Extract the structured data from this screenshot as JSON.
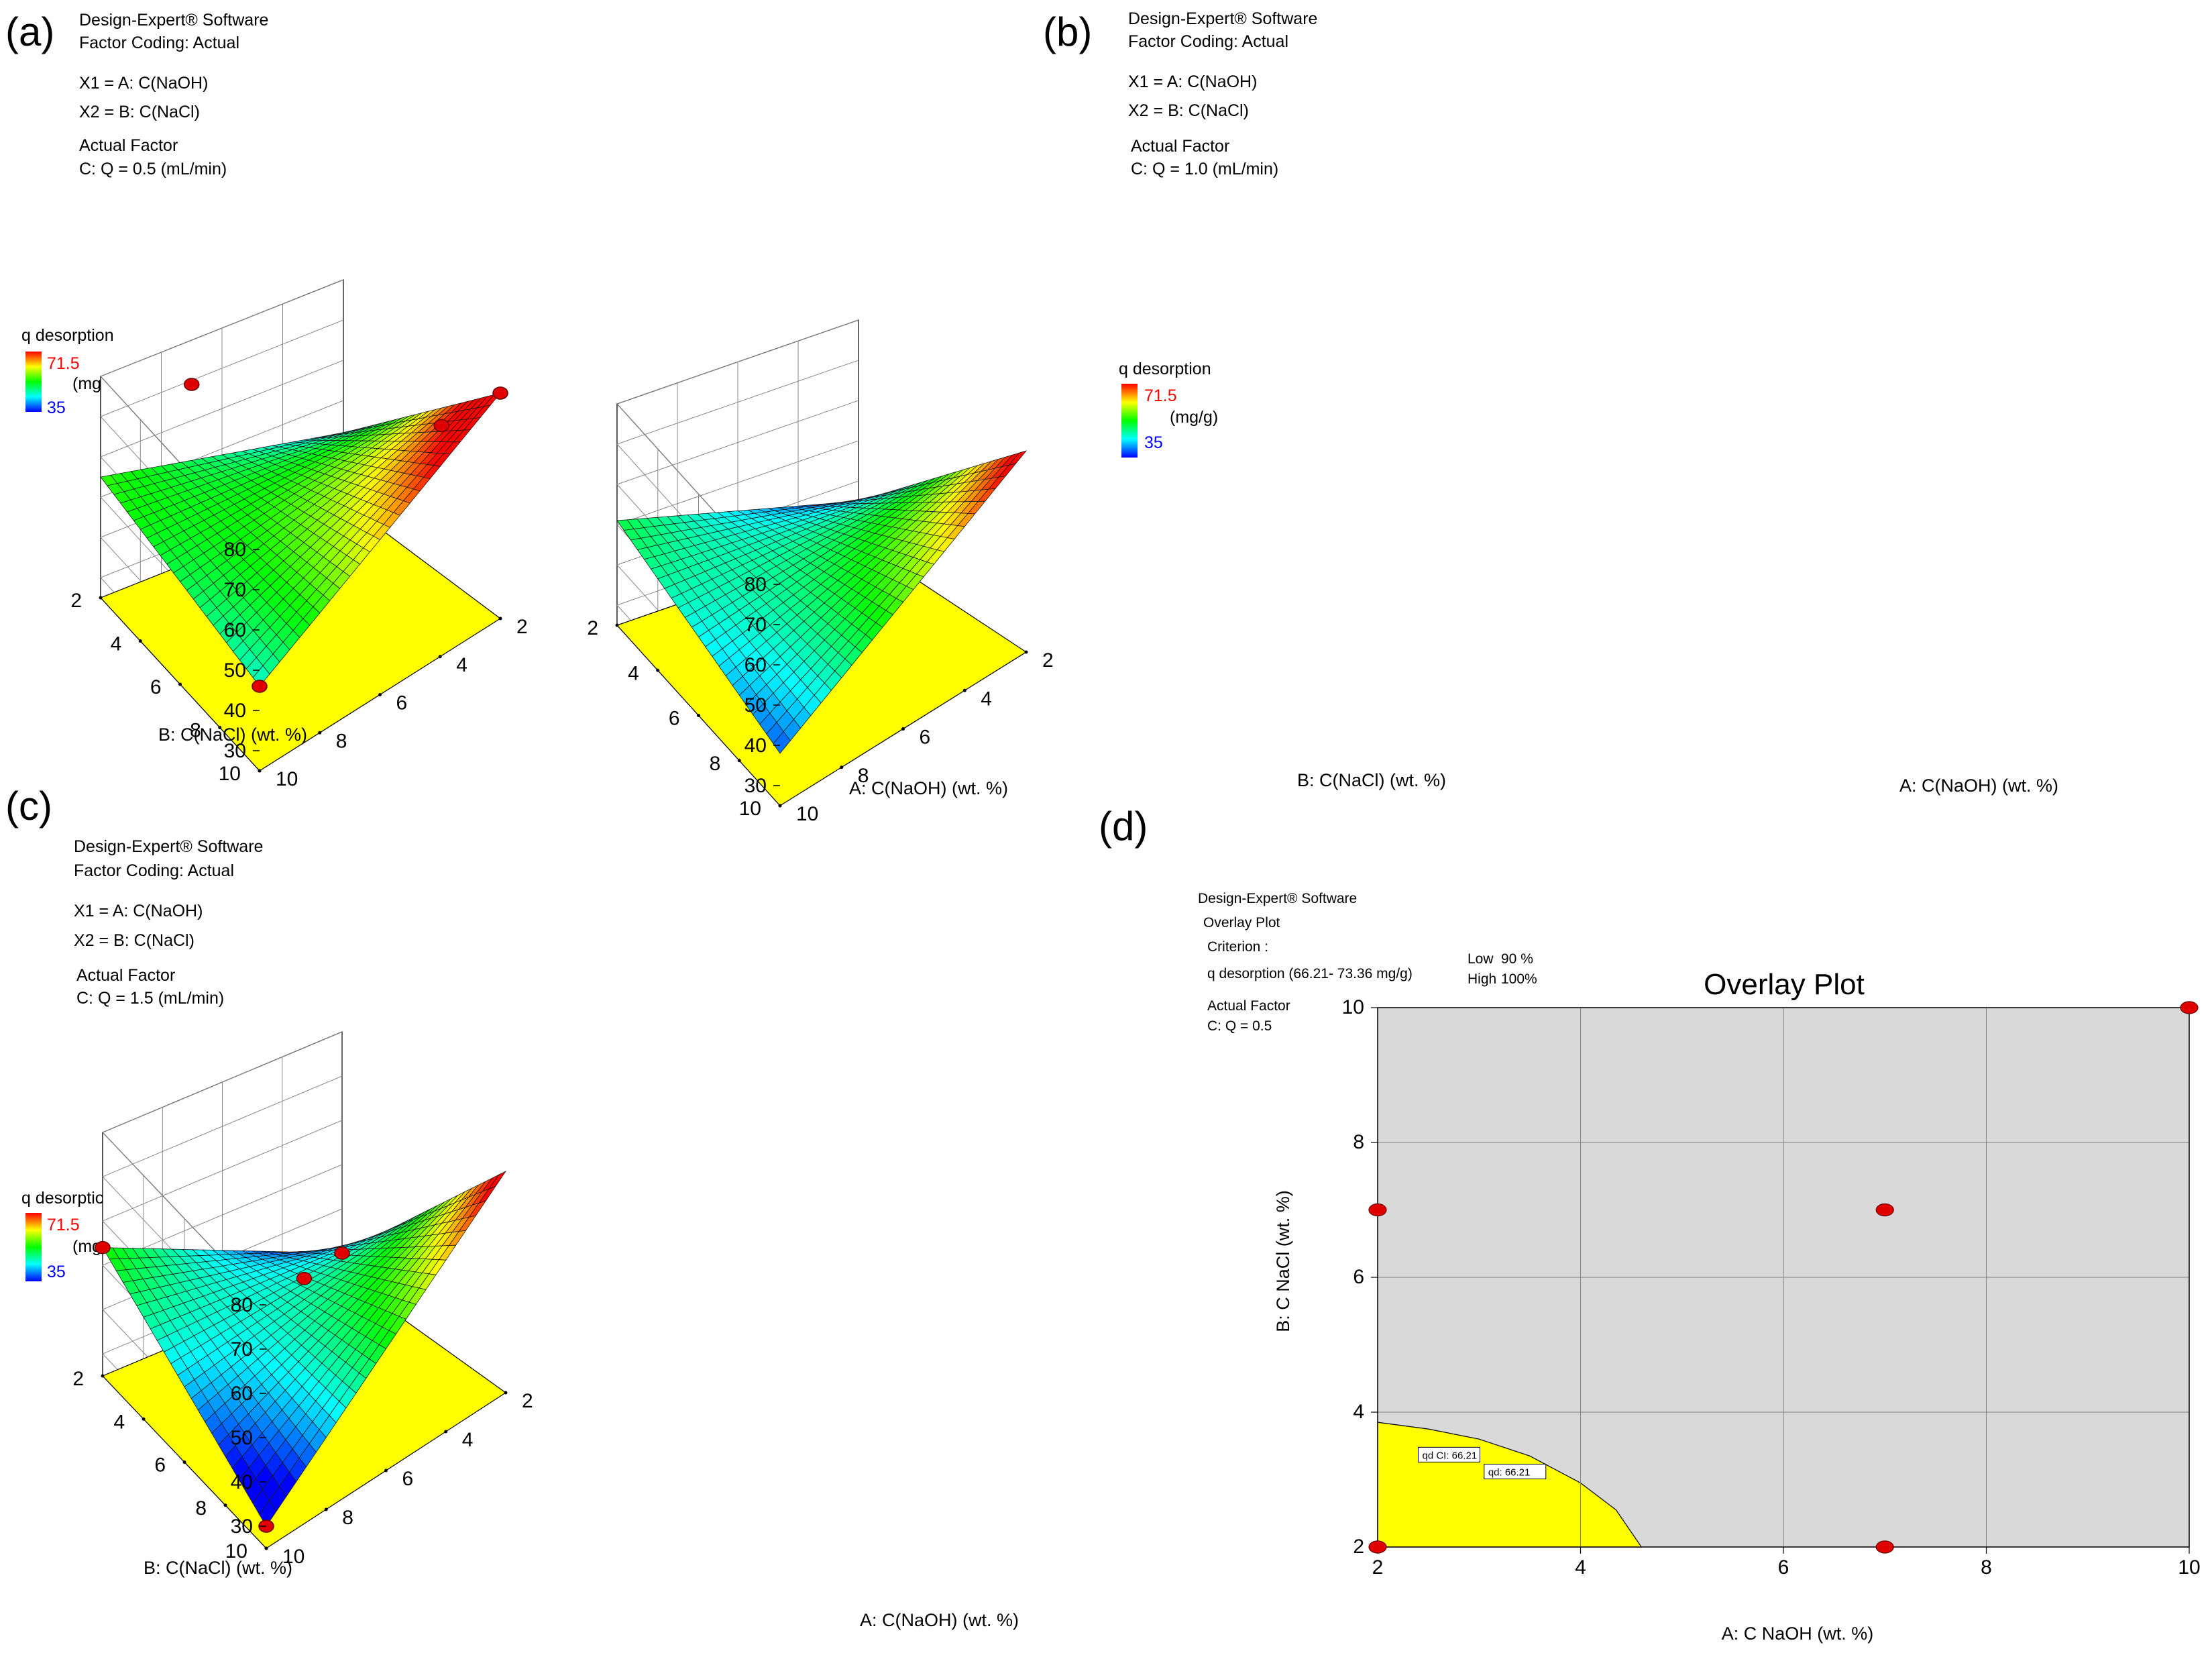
{
  "chart_data": [
    {
      "panel": "(a)",
      "type": "surface",
      "software": "Design-Expert® Software",
      "coding": "Factor Coding: Actual",
      "x1": "X1 = A: C(NaOH)",
      "x2": "X2 = B: C(NaCl)",
      "actual_factor_title": "Actual Factor",
      "actual_factor": "C: Q = 0.5  (mL/min)",
      "response": "q desorption",
      "response_unit": "(mg/g)",
      "legend_high": "71.5",
      "legend_low": "35",
      "xlabel": "A: C(NaOH) (wt. %)",
      "ylabel": "B: C(NaCl) (wt. %)",
      "x_ticks": [
        "2",
        "4",
        "6",
        "8",
        "10"
      ],
      "y_ticks": [
        "2",
        "4",
        "6",
        "8",
        "10"
      ],
      "z_ticks": [
        "30",
        "40",
        "50",
        "60",
        "70",
        "80"
      ],
      "zlim": [
        25,
        80
      ],
      "corners": {
        "a2_b2": 42,
        "a10_b2": 55,
        "a2_b10": 81,
        "a10_b10": 46
      },
      "design_points": [
        {
          "a": 10,
          "b": 10,
          "q": 46
        },
        {
          "a": 2,
          "b": 10,
          "q": 81
        },
        {
          "a": 7,
          "b": 2,
          "q": 69
        },
        {
          "a": 2,
          "b": 7,
          "q": 62
        }
      ]
    },
    {
      "panel": "(b)",
      "type": "surface",
      "software": "Design-Expert® Software",
      "coding": "Factor Coding: Actual",
      "x1": "X1 = A: C(NaOH)",
      "x2": "X2 = B: C(NaCl)",
      "actual_factor_title": "Actual Factor",
      "actual_factor": "C: Q = 1.0  (mL/min)",
      "response": "q desorption",
      "response_unit": "(mg/g)",
      "legend_high": "71.5",
      "legend_low": "35",
      "xlabel": "A: C(NaOH) (wt. %)",
      "ylabel": "B: C(NaCl) (wt. %)",
      "x_ticks": [
        "2",
        "4",
        "6",
        "8",
        "10"
      ],
      "y_ticks": [
        "2",
        "4",
        "6",
        "8",
        "10"
      ],
      "z_ticks": [
        "30",
        "40",
        "50",
        "60",
        "70",
        "80"
      ],
      "zlim": [
        25,
        80
      ],
      "corners": {
        "a2_b2": 35,
        "a10_b2": 51,
        "a2_b10": 75,
        "a10_b10": 38
      },
      "design_points": []
    },
    {
      "panel": "(c)",
      "type": "surface",
      "software": "Design-Expert® Software",
      "coding": "Factor Coding: Actual",
      "x1": "X1 = A: C(NaOH)",
      "x2": "X2 = B: C(NaCl)",
      "actual_factor_title": "Actual Factor",
      "actual_factor": "C: Q = 1.5  (mL/min)",
      "response": "q desorption",
      "response_unit": "(mg/g)",
      "legend_high": "71.5",
      "legend_low": "35",
      "xlabel": "A: C(NaOH) (wt. %)",
      "ylabel": "B: C(NaCl) (wt. %)",
      "x_ticks": [
        "2",
        "4",
        "6",
        "8",
        "10"
      ],
      "y_ticks": [
        "2",
        "4",
        "6",
        "8",
        "10"
      ],
      "z_ticks": [
        "30",
        "40",
        "50",
        "60",
        "70",
        "80"
      ],
      "zlim": [
        25,
        80
      ],
      "corners": {
        "a2_b2": 30,
        "a10_b2": 54,
        "a2_b10": 75,
        "a10_b10": 30
      },
      "design_points": [
        {
          "a": 10,
          "b": 2,
          "q": 54
        },
        {
          "a": 10,
          "b": 10,
          "q": 30
        },
        {
          "a": 2,
          "b": 2,
          "q": 30
        },
        {
          "a": 6,
          "b": 6,
          "q": 52
        }
      ]
    },
    {
      "panel": "(d)",
      "type": "overlay",
      "software": "Design-Expert® Software",
      "plot_label": "Overlay Plot",
      "criterion_title": "Criterion :",
      "criterion": "q desorption (66.21- 73.36 mg/g)",
      "low_label": "Low",
      "low_value": "90 %",
      "high_label": "High",
      "high_value": "100%",
      "actual_factor_title": "Actual Factor",
      "actual_factor": "C: Q = 0.5",
      "title": "Overlay Plot",
      "xlabel": "A: C NaOH (wt. %)",
      "ylabel": "B: C NaCl (wt. %)",
      "x_ticks": [
        2,
        4,
        6,
        8,
        10
      ],
      "y_ticks": [
        2,
        4,
        6,
        8,
        10
      ],
      "xlim": [
        2,
        10
      ],
      "ylim": [
        2,
        10
      ],
      "grid": true,
      "feasible_boundary": [
        [
          2,
          3.85
        ],
        [
          2.5,
          3.75
        ],
        [
          3.0,
          3.6
        ],
        [
          3.5,
          3.35
        ],
        [
          4.0,
          2.95
        ],
        [
          4.35,
          2.55
        ],
        [
          4.6,
          2.0
        ]
      ],
      "flags": [
        "qd CI: 66.21",
        "qd: 66.21"
      ],
      "design_points": [
        [
          10,
          10
        ],
        [
          2,
          7
        ],
        [
          7,
          7
        ],
        [
          2,
          2
        ],
        [
          7,
          2
        ]
      ],
      "colors": {
        "feasible": "#ffff00",
        "infeasible": "#d9d9d9",
        "point": "#e00000"
      }
    }
  ],
  "panels": [
    {
      "letter": "(a)"
    },
    {
      "letter": "(b)"
    },
    {
      "letter": "(c)"
    },
    {
      "letter": "(d)"
    }
  ]
}
